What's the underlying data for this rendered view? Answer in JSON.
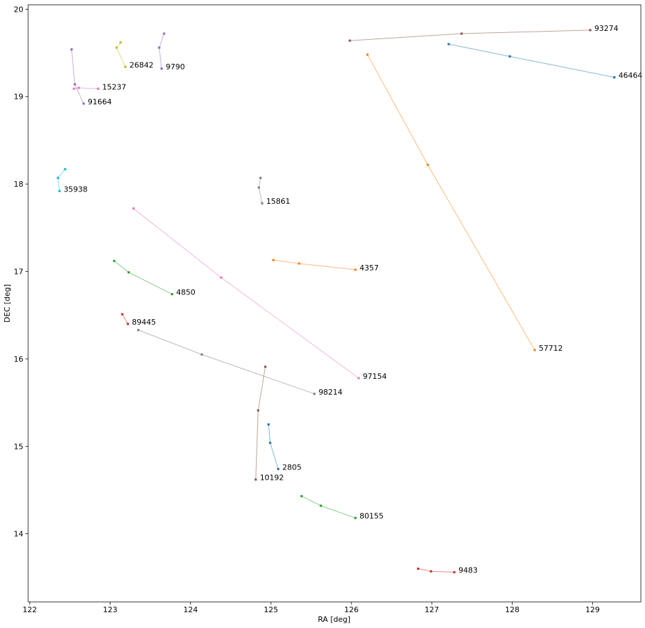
{
  "chart_data": {
    "type": "line",
    "title": "",
    "xlabel": "RA [deg]",
    "ylabel": "DEC [deg]",
    "xlim": [
      121.98,
      129.6
    ],
    "ylim": [
      13.22,
      20.05
    ],
    "xticks": [
      122,
      123,
      124,
      125,
      126,
      127,
      128,
      129
    ],
    "yticks": [
      14,
      15,
      16,
      17,
      18,
      19,
      20
    ],
    "grid": false,
    "legend": "none",
    "series": [
      {
        "name": "91664",
        "color": "#9467bd",
        "points": [
          [
            122.52,
            19.54
          ],
          [
            122.56,
            19.14
          ],
          [
            122.67,
            18.92
          ]
        ]
      },
      {
        "name": "26842",
        "color": "#bcbd22",
        "points": [
          [
            123.13,
            19.62
          ],
          [
            123.08,
            19.56
          ],
          [
            123.19,
            19.34
          ]
        ]
      },
      {
        "name": "9790",
        "color": "#9467bd",
        "points": [
          [
            123.67,
            19.72
          ],
          [
            123.61,
            19.56
          ],
          [
            123.64,
            19.32
          ]
        ]
      },
      {
        "name": "15237",
        "color": "#e377c2",
        "points": [
          [
            122.55,
            19.09
          ],
          [
            122.61,
            19.1
          ],
          [
            122.85,
            19.09
          ]
        ]
      },
      {
        "name": "93274",
        "color": "#8c564b",
        "points": [
          [
            125.98,
            19.64
          ],
          [
            127.37,
            19.72
          ],
          [
            128.97,
            19.76
          ]
        ]
      },
      {
        "name": "46464",
        "color": "#1f77b4",
        "points": [
          [
            127.21,
            19.6
          ],
          [
            127.97,
            19.46
          ],
          [
            129.27,
            19.22
          ]
        ]
      },
      {
        "name": "57712",
        "color": "#ff7f0e",
        "points": [
          [
            126.2,
            19.48
          ],
          [
            126.95,
            18.22
          ],
          [
            128.28,
            16.1
          ]
        ]
      },
      {
        "name": "35938",
        "color": "#17becf",
        "points": [
          [
            122.44,
            18.17
          ],
          [
            122.35,
            18.07
          ],
          [
            122.37,
            17.92
          ]
        ]
      },
      {
        "name": "15861",
        "color": "#7f7f7f",
        "points": [
          [
            124.87,
            18.07
          ],
          [
            124.85,
            17.96
          ],
          [
            124.89,
            17.78
          ]
        ]
      },
      {
        "name": "4357",
        "color": "#ff7f0e",
        "points": [
          [
            125.03,
            17.13
          ],
          [
            125.35,
            17.09
          ],
          [
            126.05,
            17.02
          ]
        ]
      },
      {
        "name": "4850",
        "color": "#2ca02c",
        "points": [
          [
            123.05,
            17.12
          ],
          [
            123.23,
            16.99
          ],
          [
            123.77,
            16.74
          ]
        ]
      },
      {
        "name": "97154",
        "color": "#e377c2",
        "points": [
          [
            123.29,
            17.72
          ],
          [
            124.38,
            16.93
          ],
          [
            126.09,
            15.78
          ]
        ]
      },
      {
        "name": "89445",
        "color": "#d62728",
        "points": [
          [
            123.15,
            16.51
          ],
          [
            123.22,
            16.4
          ]
        ]
      },
      {
        "name": "98214",
        "color": "#7f7f7f",
        "points": [
          [
            123.35,
            16.33
          ],
          [
            124.14,
            16.05
          ],
          [
            125.54,
            15.6
          ]
        ]
      },
      {
        "name": "10192",
        "color": "#8c564b",
        "points": [
          [
            124.93,
            15.91
          ],
          [
            124.84,
            15.41
          ],
          [
            124.81,
            14.62
          ]
        ]
      },
      {
        "name": "2805",
        "color": "#1f77b4",
        "points": [
          [
            124.97,
            15.25
          ],
          [
            124.99,
            15.04
          ],
          [
            125.09,
            14.74
          ]
        ]
      },
      {
        "name": "80155",
        "color": "#2ca02c",
        "points": [
          [
            125.38,
            14.43
          ],
          [
            125.62,
            14.32
          ],
          [
            126.05,
            14.18
          ]
        ]
      },
      {
        "name": "9483",
        "color": "#d62728",
        "points": [
          [
            126.83,
            13.6
          ],
          [
            126.99,
            13.57
          ],
          [
            127.28,
            13.56
          ]
        ]
      }
    ]
  }
}
